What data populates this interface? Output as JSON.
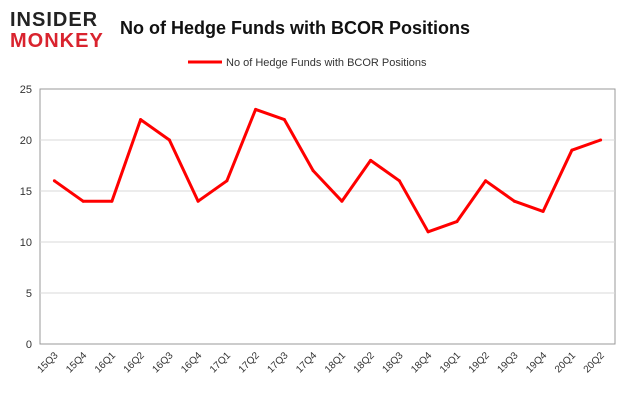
{
  "logo": {
    "top": "INSIDER",
    "bottom": "MONKEY"
  },
  "chart_data": {
    "type": "line",
    "title": "No of Hedge Funds with BCOR Positions",
    "xlabel": "",
    "ylabel": "",
    "categories": [
      "15Q3",
      "15Q4",
      "16Q1",
      "16Q2",
      "16Q3",
      "16Q4",
      "17Q1",
      "17Q2",
      "17Q3",
      "17Q4",
      "18Q1",
      "18Q2",
      "18Q3",
      "18Q4",
      "19Q1",
      "19Q2",
      "19Q3",
      "19Q4",
      "20Q1",
      "20Q2"
    ],
    "series": [
      {
        "name": "No of Hedge Funds with BCOR Positions",
        "values": [
          16,
          14,
          14,
          22,
          20,
          14,
          16,
          23,
          22,
          17,
          14,
          18,
          16,
          11,
          12,
          16,
          14,
          13,
          19,
          20
        ],
        "color": "#ff0000"
      }
    ],
    "ylim": [
      0,
      25
    ],
    "yticks": [
      0,
      5,
      10,
      15,
      20,
      25
    ],
    "grid": true,
    "legend": "top-center"
  }
}
